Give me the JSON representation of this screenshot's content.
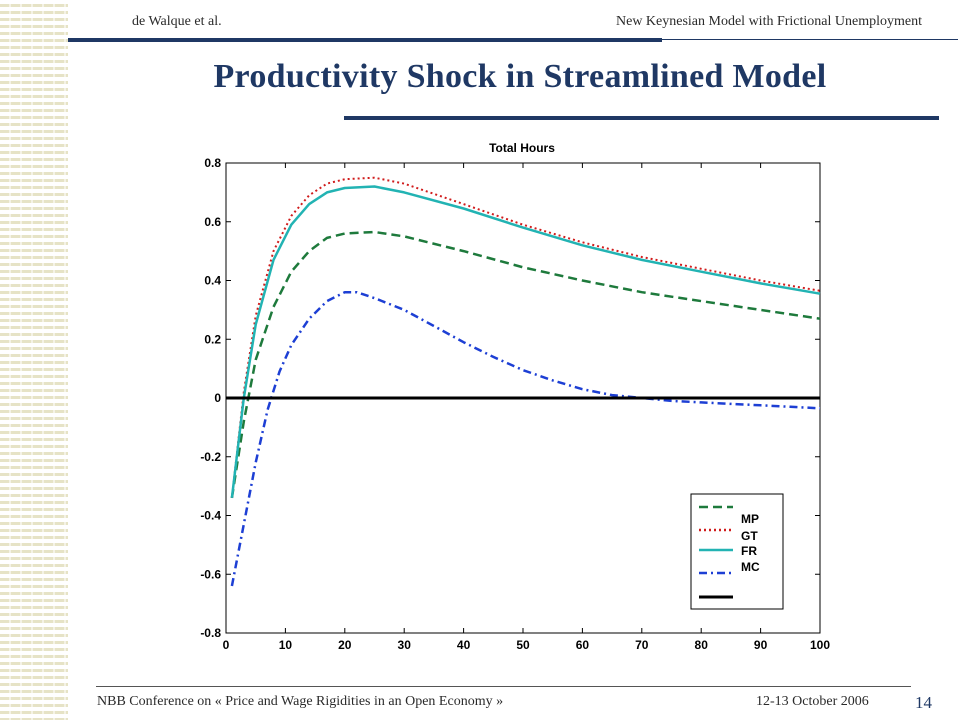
{
  "header": {
    "left": "de Walque et al.",
    "right": "New Keynesian Model  with Frictional Unemployment"
  },
  "slide": {
    "title": "Productivity  Shock  in Streamlined  Model"
  },
  "footer": {
    "conference": "NBB Conference on « Price and Wage Rigidities in an Open Economy »",
    "date": "12-13 October 2006",
    "page": "14"
  },
  "colors": {
    "accent": "#1f3864",
    "MP": "#1e7a3c",
    "GT": "#d01c1c",
    "FR": "#22b3b3",
    "MC": "#1d3fd4",
    "zero": "#000000"
  },
  "chart_data": {
    "type": "line",
    "title": "Total Hours",
    "xlabel": "",
    "ylabel": "",
    "xlim": [
      0,
      100
    ],
    "ylim": [
      -0.8,
      0.8
    ],
    "xticks": [
      0,
      10,
      20,
      30,
      40,
      50,
      60,
      70,
      80,
      90,
      100
    ],
    "yticks": [
      -0.8,
      -0.6,
      -0.4,
      -0.2,
      0,
      0.2,
      0.4,
      0.6,
      0.8
    ],
    "ytick_labels": [
      "-0.8",
      "-0.6",
      "-0.4",
      "-0.2",
      "0",
      "0.2",
      "0.4",
      "0.6",
      "0.8"
    ],
    "grid": false,
    "legend_position": "bottom-right",
    "legend_entries": [
      "MP",
      "GT",
      "FR",
      "MC"
    ],
    "series": [
      {
        "name": "MP",
        "style": "dashed",
        "color": "#1e7a3c",
        "x": [
          1,
          3,
          5,
          8,
          11,
          14,
          17,
          20,
          25,
          30,
          40,
          50,
          60,
          70,
          80,
          90,
          100
        ],
        "y": [
          -0.34,
          -0.08,
          0.13,
          0.31,
          0.43,
          0.5,
          0.545,
          0.56,
          0.565,
          0.55,
          0.5,
          0.445,
          0.4,
          0.36,
          0.33,
          0.3,
          0.27
        ]
      },
      {
        "name": "GT",
        "style": "dotted",
        "color": "#d01c1c",
        "x": [
          1,
          3,
          5,
          8,
          11,
          14,
          17,
          20,
          25,
          30,
          40,
          50,
          60,
          70,
          80,
          90,
          100
        ],
        "y": [
          -0.34,
          0.02,
          0.28,
          0.5,
          0.62,
          0.69,
          0.73,
          0.745,
          0.75,
          0.73,
          0.66,
          0.59,
          0.53,
          0.48,
          0.44,
          0.4,
          0.365
        ]
      },
      {
        "name": "FR",
        "style": "solid",
        "color": "#22b3b3",
        "x": [
          1,
          3,
          5,
          8,
          11,
          14,
          17,
          20,
          25,
          30,
          40,
          50,
          60,
          70,
          80,
          90,
          100
        ],
        "y": [
          -0.34,
          0.0,
          0.25,
          0.47,
          0.59,
          0.66,
          0.7,
          0.715,
          0.72,
          0.7,
          0.645,
          0.58,
          0.52,
          0.47,
          0.43,
          0.39,
          0.355
        ]
      },
      {
        "name": "MC",
        "style": "dashdot",
        "color": "#1d3fd4",
        "x": [
          1,
          3,
          5,
          7,
          9,
          11,
          14,
          17,
          20,
          22,
          25,
          30,
          35,
          40,
          45,
          50,
          55,
          60,
          65,
          70,
          75,
          80,
          85,
          90,
          95,
          100
        ],
        "y": [
          -0.64,
          -0.43,
          -0.22,
          -0.04,
          0.09,
          0.18,
          0.27,
          0.33,
          0.36,
          0.36,
          0.34,
          0.3,
          0.245,
          0.19,
          0.14,
          0.095,
          0.06,
          0.03,
          0.01,
          0.0,
          -0.01,
          -0.015,
          -0.02,
          -0.025,
          -0.03,
          -0.035
        ]
      },
      {
        "name": "",
        "style": "solid",
        "color": "#000000",
        "x": [
          0,
          100
        ],
        "y": [
          0,
          0
        ]
      }
    ]
  }
}
